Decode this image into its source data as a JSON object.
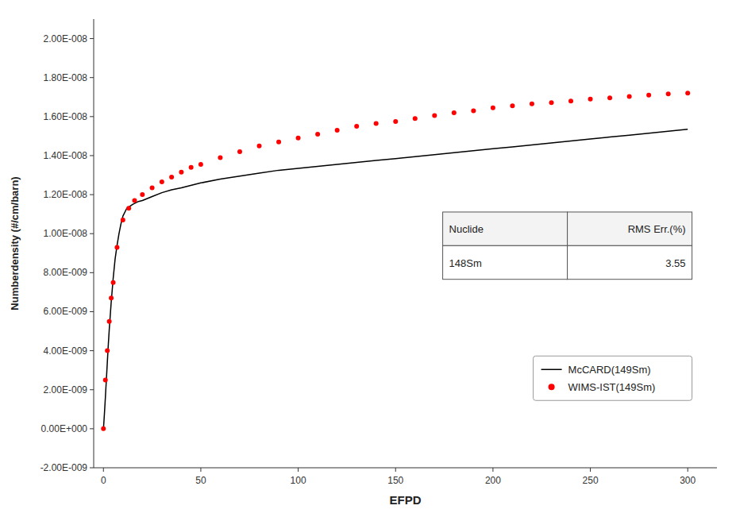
{
  "chart_data": {
    "type": "line",
    "xlabel": "EFPD",
    "ylabel": "Numberdensity (#/cm/barn)",
    "xlim": [
      -5,
      315
    ],
    "ylim": [
      -2e-09,
      2.1e-08
    ],
    "xticks": [
      0,
      50,
      100,
      150,
      200,
      250,
      300
    ],
    "yticks": [
      {
        "value": -2e-09,
        "label": "-2.00E-009"
      },
      {
        "value": 0.0,
        "label": "0.00E+000"
      },
      {
        "value": 2e-09,
        "label": "2.00E-009"
      },
      {
        "value": 4e-09,
        "label": "4.00E-009"
      },
      {
        "value": 6e-09,
        "label": "6.00E-009"
      },
      {
        "value": 8e-09,
        "label": "8.00E-009"
      },
      {
        "value": 1e-08,
        "label": "1.00E-008"
      },
      {
        "value": 1.2e-08,
        "label": "1.20E-008"
      },
      {
        "value": 1.4e-08,
        "label": "1.40E-008"
      },
      {
        "value": 1.6e-08,
        "label": "1.60E-008"
      },
      {
        "value": 1.8e-08,
        "label": "1.80E-008"
      },
      {
        "value": 2e-08,
        "label": "2.00E-008"
      }
    ],
    "grid": false,
    "legend": "lower right",
    "series": [
      {
        "name": "McCARD(149Sm)",
        "type": "line",
        "color": "#000000",
        "x": [
          0,
          0.2,
          0.5,
          0.8,
          1.0,
          1.5,
          2.0,
          2.5,
          3.0,
          4.0,
          5.0,
          6.0,
          7.0,
          8.0,
          9.0,
          10.0,
          12.0,
          15.0,
          18.0,
          20.0,
          25.0,
          30.0,
          35.0,
          40.0,
          50.0,
          60.0,
          70.0,
          80.0,
          90.0,
          100.0,
          110.0,
          120.0,
          130.0,
          140.0,
          150.0,
          160.0,
          170.0,
          180.0,
          190.0,
          200.0,
          210.0,
          220.0,
          230.0,
          240.0,
          250.0,
          260.0,
          270.0,
          280.0,
          290.0,
          300.0
        ],
        "values": [
          0.0,
          2.8e-10,
          7.5e-10,
          1.25e-09,
          1.6e-09,
          2.5e-09,
          3.4e-09,
          4.3e-09,
          5.1e-09,
          6.5e-09,
          7.7e-09,
          8.7e-09,
          9.4e-09,
          1e-08,
          1.05e-08,
          1.09e-08,
          1.13e-08,
          1.15e-08,
          1.165e-08,
          1.17e-08,
          1.19e-08,
          1.21e-08,
          1.225e-08,
          1.235e-08,
          1.26e-08,
          1.28e-08,
          1.295e-08,
          1.31e-08,
          1.325e-08,
          1.335e-08,
          1.345e-08,
          1.355e-08,
          1.365e-08,
          1.375e-08,
          1.385e-08,
          1.395e-08,
          1.405e-08,
          1.415e-08,
          1.425e-08,
          1.435e-08,
          1.445e-08,
          1.455e-08,
          1.465e-08,
          1.475e-08,
          1.485e-08,
          1.495e-08,
          1.505e-08,
          1.515e-08,
          1.525e-08,
          1.535e-08
        ]
      },
      {
        "name": "WIMS-IST(149Sm)",
        "type": "scatter",
        "color": "#ff0000",
        "marker": "circle",
        "x": [
          0.0,
          1.0,
          2.0,
          3.0,
          4.0,
          5.0,
          7.0,
          10.0,
          13.0,
          16.0,
          20.0,
          25.0,
          30.0,
          35.0,
          40.0,
          45.0,
          50.0,
          60.0,
          70.0,
          80.0,
          90.0,
          100.0,
          110.0,
          120.0,
          130.0,
          140.0,
          150.0,
          160.0,
          170.0,
          180.0,
          190.0,
          200.0,
          210.0,
          220.0,
          230.0,
          240.0,
          250.0,
          260.0,
          270.0,
          280.0,
          290.0,
          300.0
        ],
        "values": [
          0.0,
          2.5e-09,
          4e-09,
          5.5e-09,
          6.7e-09,
          7.5e-09,
          9.3e-09,
          1.07e-08,
          1.13e-08,
          1.17e-08,
          1.2e-08,
          1.235e-08,
          1.265e-08,
          1.29e-08,
          1.315e-08,
          1.34e-08,
          1.355e-08,
          1.39e-08,
          1.42e-08,
          1.45e-08,
          1.47e-08,
          1.49e-08,
          1.51e-08,
          1.53e-08,
          1.55e-08,
          1.565e-08,
          1.575e-08,
          1.59e-08,
          1.605e-08,
          1.62e-08,
          1.63e-08,
          1.645e-08,
          1.655e-08,
          1.665e-08,
          1.672e-08,
          1.68e-08,
          1.69e-08,
          1.696e-08,
          1.703e-08,
          1.71e-08,
          1.716e-08,
          1.72e-08
        ]
      }
    ],
    "table": {
      "columns": [
        "Nuclide",
        "RMS Err.(%)"
      ],
      "rows": [
        [
          "148Sm",
          "3.55"
        ]
      ]
    }
  }
}
